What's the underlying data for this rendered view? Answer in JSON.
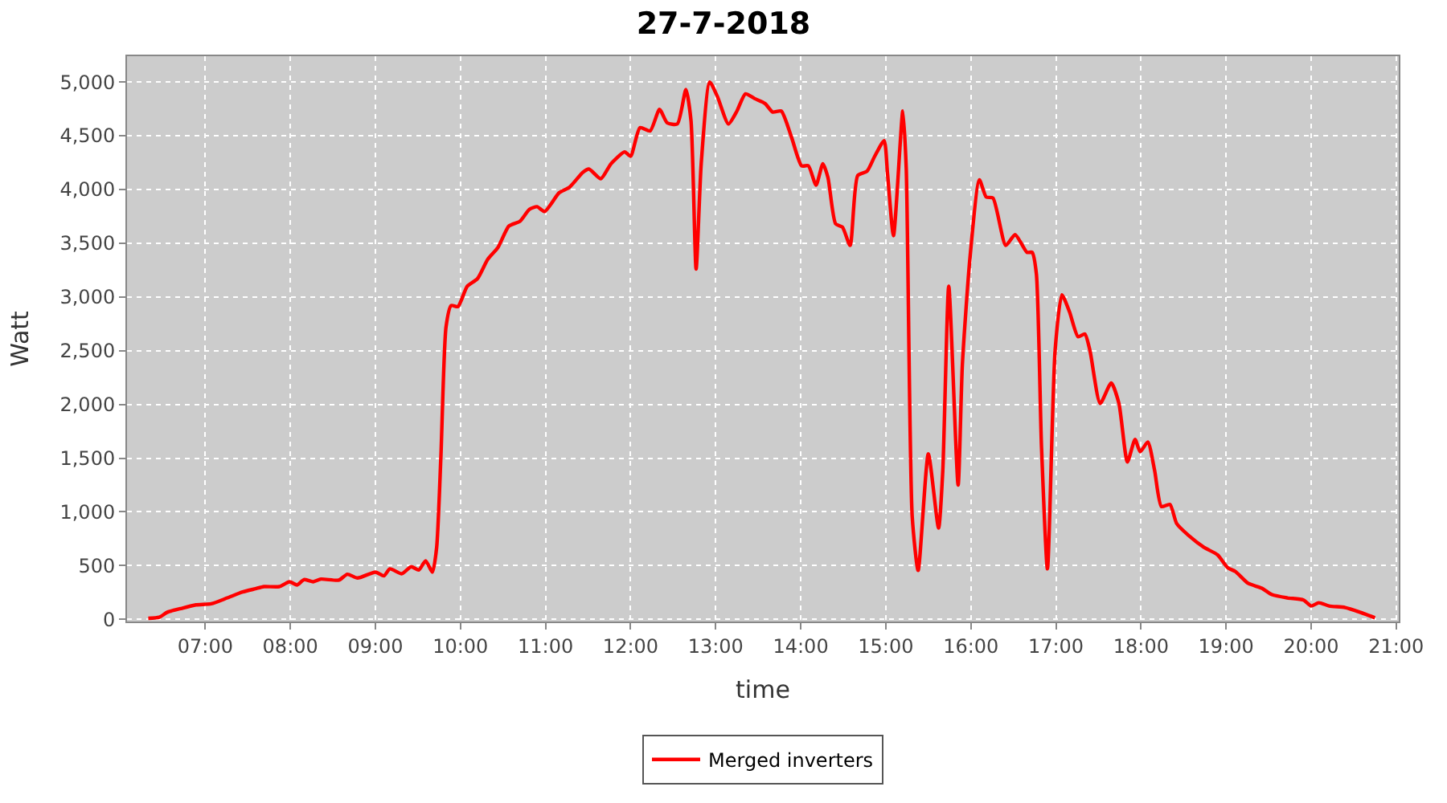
{
  "chart_data": {
    "type": "line",
    "title": "27-7-2018",
    "xlabel": "time",
    "ylabel": "Watt",
    "x": [
      6.33,
      6.46,
      6.55,
      6.71,
      6.89,
      7.07,
      7.26,
      7.44,
      7.59,
      7.69,
      7.87,
      7.99,
      8.08,
      8.16,
      8.27,
      8.36,
      8.57,
      8.67,
      8.79,
      9.0,
      9.1,
      9.17,
      9.31,
      9.42,
      9.51,
      9.59,
      9.67,
      9.72,
      9.77,
      9.83,
      9.89,
      9.97,
      10.08,
      10.2,
      10.32,
      10.44,
      10.57,
      10.7,
      10.81,
      10.9,
      10.99,
      11.16,
      11.28,
      11.44,
      11.51,
      11.65,
      11.77,
      11.93,
      12.0,
      12.11,
      12.23,
      12.34,
      12.43,
      12.55,
      12.65,
      12.71,
      12.77,
      12.83,
      12.93,
      13.02,
      13.15,
      13.25,
      13.35,
      13.46,
      13.58,
      13.67,
      13.77,
      13.89,
      14.01,
      14.09,
      14.18,
      14.26,
      14.32,
      14.41,
      14.49,
      14.58,
      14.67,
      14.78,
      14.87,
      14.98,
      15.02,
      15.09,
      15.2,
      15.24,
      15.31,
      15.38,
      15.5,
      15.62,
      15.67,
      15.74,
      15.85,
      15.9,
      15.99,
      16.1,
      16.18,
      16.26,
      16.41,
      16.52,
      16.66,
      16.72,
      16.77,
      16.83,
      16.9,
      16.99,
      17.07,
      17.16,
      17.26,
      17.34,
      17.4,
      17.52,
      17.65,
      17.74,
      17.84,
      17.93,
      17.99,
      18.08,
      18.16,
      18.24,
      18.34,
      18.42,
      18.56,
      18.74,
      18.9,
      19.02,
      19.11,
      19.26,
      19.42,
      19.54,
      19.72,
      19.91,
      20.0,
      20.09,
      20.21,
      20.4,
      20.58,
      20.75
    ],
    "series": [
      {
        "name": "Merged inverters",
        "color": "#ff0000",
        "values": [
          10,
          20,
          65,
          100,
          135,
          145,
          200,
          255,
          285,
          305,
          305,
          350,
          320,
          370,
          350,
          375,
          365,
          420,
          385,
          440,
          405,
          470,
          425,
          490,
          460,
          545,
          440,
          670,
          1520,
          2720,
          2920,
          2910,
          3100,
          3170,
          3350,
          3460,
          3660,
          3705,
          3815,
          3840,
          3795,
          3970,
          4020,
          4160,
          4190,
          4100,
          4240,
          4350,
          4310,
          4575,
          4545,
          4745,
          4620,
          4610,
          4930,
          4640,
          3260,
          4240,
          5000,
          4865,
          4610,
          4730,
          4890,
          4845,
          4800,
          4720,
          4730,
          4490,
          4220,
          4220,
          4040,
          4240,
          4110,
          3680,
          3650,
          3480,
          4130,
          4170,
          4310,
          4455,
          4150,
          3570,
          4730,
          4200,
          960,
          455,
          1540,
          850,
          1385,
          3100,
          1250,
          2370,
          3370,
          4090,
          3930,
          3920,
          3480,
          3580,
          3415,
          3415,
          3215,
          1610,
          470,
          2500,
          3020,
          2860,
          2630,
          2655,
          2500,
          2010,
          2200,
          2010,
          1465,
          1675,
          1560,
          1650,
          1385,
          1050,
          1070,
          890,
          780,
          670,
          600,
          480,
          445,
          335,
          290,
          230,
          200,
          180,
          125,
          155,
          125,
          110,
          65,
          15
        ]
      }
    ],
    "xlim": [
      6.08,
      21.03
    ],
    "xticks": [
      {
        "value": 7,
        "label": "07:00"
      },
      {
        "value": 8,
        "label": "08:00"
      },
      {
        "value": 9,
        "label": "09:00"
      },
      {
        "value": 10,
        "label": "10:00"
      },
      {
        "value": 11,
        "label": "11:00"
      },
      {
        "value": 12,
        "label": "12:00"
      },
      {
        "value": 13,
        "label": "13:00"
      },
      {
        "value": 14,
        "label": "14:00"
      },
      {
        "value": 15,
        "label": "15:00"
      },
      {
        "value": 16,
        "label": "16:00"
      },
      {
        "value": 17,
        "label": "17:00"
      },
      {
        "value": 18,
        "label": "18:00"
      },
      {
        "value": 19,
        "label": "19:00"
      },
      {
        "value": 20,
        "label": "20:00"
      },
      {
        "value": 21,
        "label": "21:00"
      }
    ],
    "ylim": [
      -20,
      5240
    ],
    "yticks": [
      0,
      500,
      {
        "value": 1000,
        "label": "1,000"
      },
      {
        "value": 1500,
        "label": "1,500"
      },
      {
        "value": 2000,
        "label": "2,000"
      },
      {
        "value": 2500,
        "label": "2,500"
      },
      {
        "value": 3000,
        "label": "3,000"
      },
      {
        "value": 3500,
        "label": "3,500"
      },
      {
        "value": 4000,
        "label": "4,000"
      },
      {
        "value": 4500,
        "label": "4,500"
      },
      {
        "value": 5000,
        "label": "5,000"
      }
    ],
    "grid": true,
    "legend": "bottom",
    "marker": "none",
    "line_style": "solid"
  }
}
